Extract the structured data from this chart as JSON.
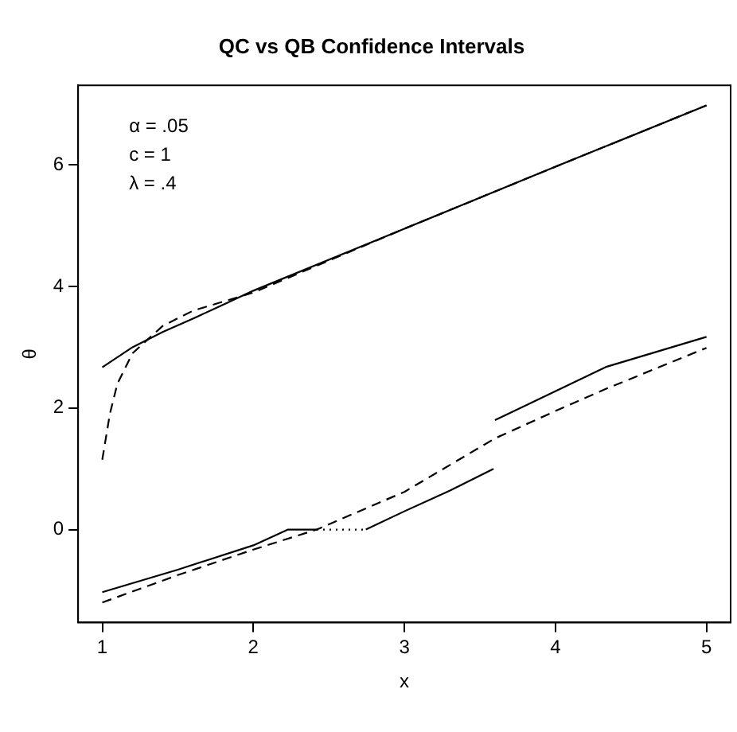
{
  "chart_data": {
    "type": "line",
    "title": "QC vs QB Confidence Intervals",
    "xlabel": "x",
    "ylabel": "θ",
    "annotations": [
      "α = .05",
      "c = 1",
      "λ = .4"
    ],
    "xlim": [
      0.84,
      5.16
    ],
    "xticks": [
      1,
      2,
      3,
      4,
      5
    ],
    "ylim": [
      -1.53,
      7.31
    ],
    "yticks": [
      0,
      2,
      4,
      6
    ],
    "grid": false,
    "legend": false,
    "marker": "none",
    "series": [
      {
        "color": "#000000",
        "line_style": "solid",
        "x": [
          1,
          1.2,
          1.4,
          1.6,
          1.8,
          2,
          3,
          4,
          5
        ],
        "values": [
          2.67,
          3.0,
          3.25,
          3.47,
          3.7,
          3.93,
          4.95,
          5.97,
          6.98
        ]
      },
      {
        "color": "#000000",
        "line_style": "dashed",
        "x": [
          1,
          1.05,
          1.1,
          1.2,
          1.4,
          1.6,
          2,
          3,
          4,
          5
        ],
        "values": [
          1.15,
          1.9,
          2.4,
          2.9,
          3.35,
          3.6,
          3.9,
          4.95,
          5.97,
          6.98
        ]
      },
      {
        "color": "#000000",
        "line_style": "solid",
        "x": [
          1,
          1.5,
          2,
          2.23,
          2.42
        ],
        "values": [
          -1.03,
          -0.66,
          -0.26,
          0,
          0
        ]
      },
      {
        "color": "#000000",
        "line_style": "solid",
        "x": [
          2.745,
          3,
          3.3,
          3.59
        ],
        "values": [
          0,
          0.3,
          0.64,
          1.0
        ]
      },
      {
        "color": "#000000",
        "line_style": "solid",
        "x": [
          3.6,
          4.34,
          5
        ],
        "values": [
          1.8,
          2.68,
          3.17
        ]
      },
      {
        "color": "#000000",
        "line_style": "dotted",
        "x": [
          2.42,
          2.745
        ],
        "values": [
          0,
          0
        ]
      },
      {
        "color": "#000000",
        "line_style": "dashed",
        "x": [
          1,
          1.5,
          2,
          2.42,
          3,
          3.6,
          4,
          4.34,
          5
        ],
        "values": [
          -1.2,
          -0.75,
          -0.33,
          0,
          0.62,
          1.5,
          1.95,
          2.32,
          2.99
        ]
      }
    ]
  }
}
